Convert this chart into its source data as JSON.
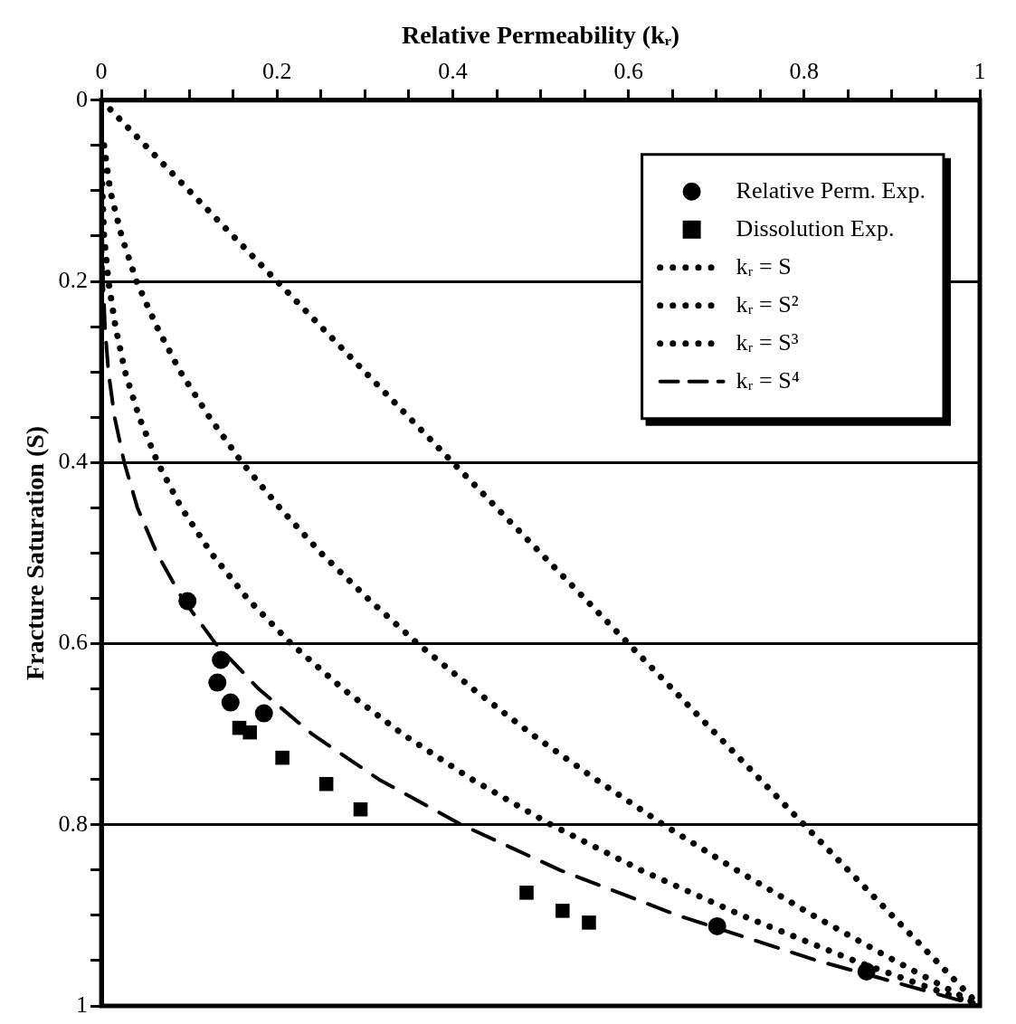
{
  "chart_data": {
    "type": "line",
    "xlabel": "Relative Permeability (kᵣ)",
    "ylabel": "Fracture Saturation (S)",
    "xlim": [
      0,
      1
    ],
    "ylim": [
      1,
      0
    ],
    "xticks": [
      0,
      {
        "value": 0.05,
        "label": null
      },
      {
        "value": 0.1,
        "label": null
      },
      {
        "value": 0.15,
        "label": null
      },
      0.2,
      {
        "value": 0.25,
        "label": null
      },
      {
        "value": 0.3,
        "label": null
      },
      {
        "value": 0.35,
        "label": null
      },
      0.4,
      {
        "value": 0.45,
        "label": null
      },
      {
        "value": 0.5,
        "label": null
      },
      {
        "value": 0.55,
        "label": null
      },
      0.6,
      {
        "value": 0.65,
        "label": null
      },
      {
        "value": 0.7,
        "label": null
      },
      {
        "value": 0.75,
        "label": null
      },
      0.8,
      {
        "value": 0.85,
        "label": null
      },
      {
        "value": 0.9,
        "label": null
      },
      {
        "value": 0.95,
        "label": null
      },
      1
    ],
    "yticks": [
      0,
      {
        "value": 0.05,
        "label": null
      },
      {
        "value": 0.1,
        "label": null
      },
      {
        "value": 0.15,
        "label": null
      },
      0.2,
      {
        "value": 0.25,
        "label": null
      },
      {
        "value": 0.3,
        "label": null
      },
      {
        "value": 0.35,
        "label": null
      },
      0.4,
      {
        "value": 0.45,
        "label": null
      },
      {
        "value": 0.5,
        "label": null
      },
      {
        "value": 0.55,
        "label": null
      },
      0.6,
      {
        "value": 0.65,
        "label": null
      },
      {
        "value": 0.7,
        "label": null
      },
      {
        "value": 0.75,
        "label": null
      },
      0.8,
      {
        "value": 0.85,
        "label": null
      },
      {
        "value": 0.9,
        "label": null
      },
      {
        "value": 0.95,
        "label": null
      },
      1
    ],
    "grid": "y",
    "legend": "top right",
    "series": [
      {
        "name": "Relative Perm. Exp.",
        "type": "scatter",
        "marker": "circle",
        "color": "#000000",
        "x": [
          0.098,
          0.136,
          0.132,
          0.147,
          0.185,
          0.701,
          0.871
        ],
        "values": [
          0.553,
          0.618,
          0.643,
          0.665,
          0.677,
          0.912,
          0.962
        ]
      },
      {
        "name": "Dissolution Exp.",
        "type": "scatter",
        "marker": "square",
        "color": "#000000",
        "x": [
          0.157,
          0.169,
          0.206,
          0.256,
          0.295,
          0.484,
          0.525,
          0.555
        ],
        "values": [
          0.693,
          0.698,
          0.726,
          0.755,
          0.783,
          0.875,
          0.895,
          0.908
        ]
      },
      {
        "name": "kᵣ = S",
        "marker": "none",
        "line_style": "dotted",
        "color": "#000000",
        "x": [
          0,
          0.05,
          0.1,
          0.15,
          0.2,
          0.25,
          0.3,
          0.35,
          0.4,
          0.45,
          0.5,
          0.55,
          0.6,
          0.65,
          0.7,
          0.75,
          0.8,
          0.85,
          0.9,
          0.95,
          1
        ],
        "values": [
          0,
          0.05,
          0.1,
          0.15,
          0.2,
          0.25,
          0.3,
          0.35,
          0.4,
          0.45,
          0.5,
          0.55,
          0.6,
          0.65,
          0.7,
          0.75,
          0.8,
          0.85,
          0.9,
          0.95,
          1
        ]
      },
      {
        "name": "kᵣ = S²",
        "type": "line",
        "marker": "none",
        "line_style": "dotted",
        "color": "#000000",
        "x": [
          0.003,
          0.01,
          0.023,
          0.04,
          0.063,
          0.09,
          0.123,
          0.16,
          0.203,
          0.25,
          0.303,
          0.36,
          0.423,
          0.49,
          0.563,
          0.64,
          0.723,
          0.81,
          0.903,
          1
        ],
        "values": [
          0.05,
          0.1,
          0.15,
          0.2,
          0.25,
          0.3,
          0.35,
          0.4,
          0.45,
          0.5,
          0.55,
          0.6,
          0.65,
          0.7,
          0.75,
          0.8,
          0.85,
          0.9,
          0.95,
          1
        ]
      },
      {
        "name": "kᵣ = S³",
        "type": "line",
        "marker": "none",
        "line_style": "dotted",
        "color": "#000000",
        "x": [
          0,
          0.001,
          0.003,
          0.008,
          0.016,
          0.027,
          0.043,
          0.064,
          0.091,
          0.125,
          0.166,
          0.216,
          0.275,
          0.343,
          0.422,
          0.512,
          0.614,
          0.729,
          0.857,
          1
        ],
        "values": [
          0.05,
          0.1,
          0.15,
          0.2,
          0.25,
          0.3,
          0.35,
          0.4,
          0.45,
          0.5,
          0.55,
          0.6,
          0.65,
          0.7,
          0.75,
          0.8,
          0.85,
          0.9,
          0.95,
          1
        ]
      },
      {
        "name": "kᵣ = S⁴",
        "type": "line",
        "marker": "none",
        "line_style": "dashed",
        "color": "#000000",
        "x": [
          0,
          0.001,
          0.002,
          0.004,
          0.008,
          0.015,
          0.026,
          0.041,
          0.063,
          0.092,
          0.13,
          0.179,
          0.24,
          0.316,
          0.41,
          0.522,
          0.656,
          0.815,
          1
        ],
        "values": [
          0.1,
          0.15,
          0.2,
          0.25,
          0.3,
          0.35,
          0.4,
          0.45,
          0.5,
          0.55,
          0.6,
          0.65,
          0.7,
          0.75,
          0.8,
          0.85,
          0.9,
          0.95,
          1
        ]
      }
    ]
  }
}
